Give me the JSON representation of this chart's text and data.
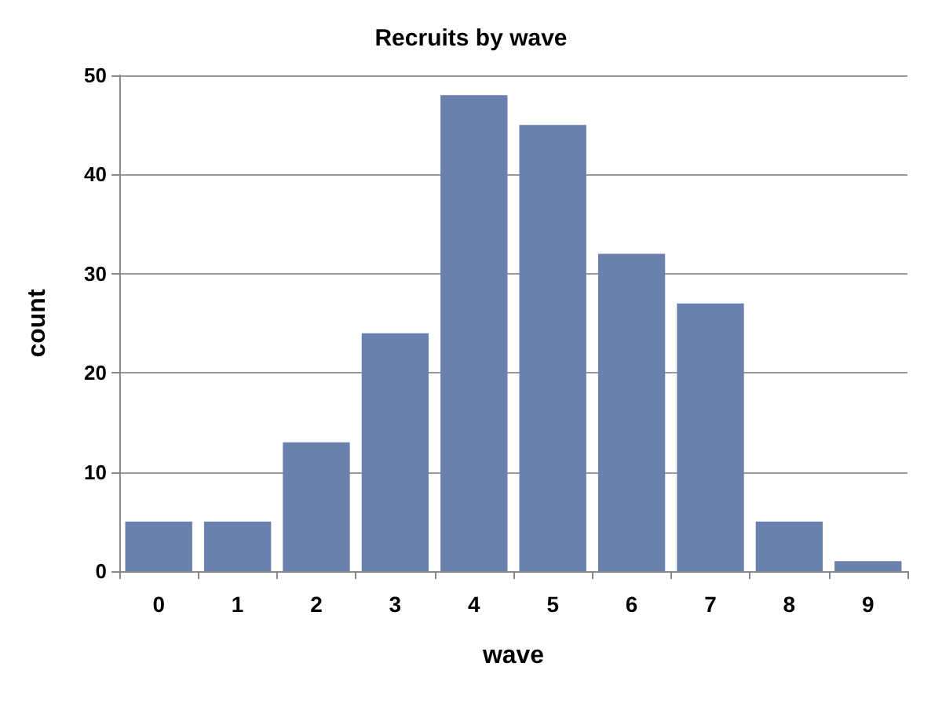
{
  "chart_data": {
    "type": "bar",
    "title": "Recruits by wave",
    "xlabel": "wave",
    "ylabel": "count",
    "categories": [
      "0",
      "1",
      "2",
      "3",
      "4",
      "5",
      "6",
      "7",
      "8",
      "9"
    ],
    "values": [
      5,
      5,
      13,
      24,
      48,
      45,
      32,
      27,
      5,
      1
    ],
    "color": "#6a80ad",
    "ylim": [
      0,
      50
    ],
    "yticks": [
      0,
      10,
      20,
      30,
      40,
      50
    ],
    "grid": "y"
  }
}
